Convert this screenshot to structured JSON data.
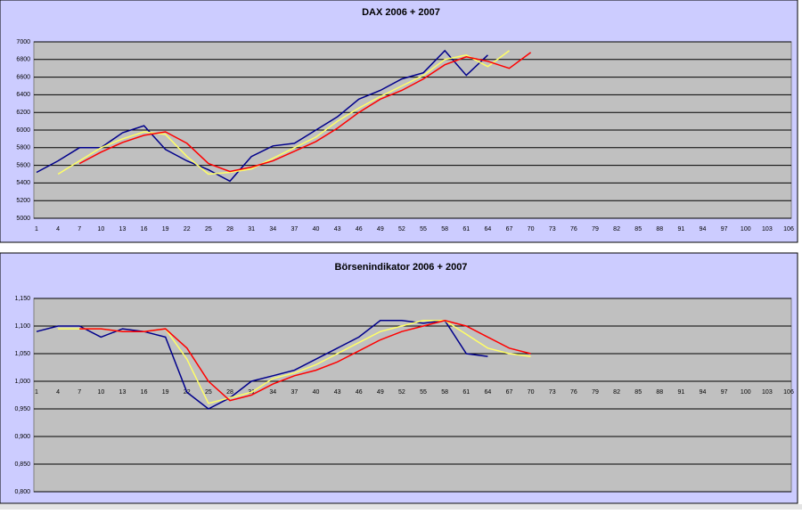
{
  "chart_data": [
    {
      "type": "line",
      "title": "DAX 2006 + 2007",
      "categories": [
        "1",
        "4",
        "7",
        "10",
        "13",
        "16",
        "19",
        "22",
        "25",
        "28",
        "31",
        "34",
        "37",
        "40",
        "43",
        "46",
        "49",
        "52",
        "55",
        "58",
        "61",
        "64",
        "67",
        "70",
        "73",
        "76",
        "79",
        "82",
        "85",
        "88",
        "91",
        "94",
        "97",
        "100",
        "103",
        "106"
      ],
      "series": [
        {
          "color": "#00008b",
          "values": [
            5520,
            5650,
            5800,
            5800,
            5970,
            6050,
            5780,
            5650,
            5550,
            5420,
            5700,
            5820,
            5850,
            6000,
            6150,
            6350,
            6450,
            6580,
            6650,
            6900,
            6620,
            6850,
            null,
            null,
            null,
            null,
            null,
            null,
            null,
            null,
            null,
            null,
            null,
            null,
            null,
            null
          ]
        },
        {
          "color": "#ffff66",
          "values": [
            null,
            5500,
            5650,
            5800,
            5900,
            5980,
            5950,
            5700,
            5500,
            5520,
            5560,
            5680,
            5800,
            5920,
            6100,
            6250,
            6380,
            6500,
            6620,
            6800,
            6850,
            6720,
            6900,
            null,
            null,
            null,
            null,
            null,
            null,
            null,
            null,
            null,
            null,
            null,
            null,
            null
          ]
        },
        {
          "color": "#ff0000",
          "values": [
            null,
            null,
            5620,
            5750,
            5860,
            5940,
            5980,
            5850,
            5620,
            5530,
            5580,
            5650,
            5760,
            5870,
            6020,
            6200,
            6350,
            6450,
            6580,
            6740,
            6830,
            6780,
            6700,
            6880,
            null,
            null,
            null,
            null,
            null,
            null,
            null,
            null,
            null,
            null,
            null,
            null
          ]
        }
      ],
      "ylim": [
        5000,
        7000
      ],
      "yticks": [
        5000,
        5200,
        5400,
        5600,
        5800,
        6000,
        6200,
        6400,
        6600,
        6800,
        7000
      ],
      "grid": true
    },
    {
      "type": "line",
      "title": "Börsenindikator 2006 + 2007",
      "categories": [
        "1",
        "4",
        "7",
        "10",
        "13",
        "16",
        "19",
        "22",
        "25",
        "28",
        "31",
        "34",
        "37",
        "40",
        "43",
        "46",
        "49",
        "52",
        "55",
        "58",
        "61",
        "64",
        "67",
        "70",
        "73",
        "76",
        "79",
        "82",
        "85",
        "88",
        "91",
        "94",
        "97",
        "100",
        "103",
        "106"
      ],
      "series": [
        {
          "color": "#00008b",
          "values": [
            1.09,
            1.1,
            1.1,
            1.08,
            1.095,
            1.09,
            1.08,
            0.98,
            0.95,
            0.97,
            1.0,
            1.01,
            1.02,
            1.04,
            1.06,
            1.08,
            1.11,
            1.11,
            1.105,
            1.11,
            1.05,
            1.045,
            null,
            null,
            null,
            null,
            null,
            null,
            null,
            null,
            null,
            null,
            null,
            null,
            null,
            null
          ]
        },
        {
          "color": "#ffff66",
          "values": [
            null,
            1.095,
            1.095,
            1.095,
            1.09,
            1.09,
            1.095,
            1.04,
            0.96,
            0.97,
            0.98,
            1.005,
            1.015,
            1.03,
            1.05,
            1.07,
            1.09,
            1.1,
            1.11,
            1.11,
            1.085,
            1.06,
            1.05,
            1.045,
            null,
            null,
            null,
            null,
            null,
            null,
            null,
            null,
            null,
            null,
            null,
            null
          ]
        },
        {
          "color": "#ff0000",
          "values": [
            null,
            null,
            1.095,
            1.095,
            1.09,
            1.09,
            1.095,
            1.06,
            1.0,
            0.965,
            0.975,
            0.995,
            1.01,
            1.02,
            1.035,
            1.055,
            1.075,
            1.09,
            1.1,
            1.11,
            1.1,
            1.08,
            1.06,
            1.05,
            null,
            null,
            null,
            null,
            null,
            null,
            null,
            null,
            null,
            null,
            null,
            null
          ]
        }
      ],
      "ylim": [
        0.8,
        1.15
      ],
      "yticks": [
        {
          "value": 0.8,
          "label": "0,800"
        },
        {
          "value": 0.85,
          "label": "0,850"
        },
        {
          "value": 0.9,
          "label": "0,900"
        },
        {
          "value": 0.95,
          "label": "0,950"
        },
        {
          "value": 1.0,
          "label": "1,000"
        },
        {
          "value": 1.05,
          "label": "1,050"
        },
        {
          "value": 1.1,
          "label": "1,100"
        },
        {
          "value": 1.15,
          "label": "1,150"
        }
      ],
      "grid": true
    }
  ]
}
